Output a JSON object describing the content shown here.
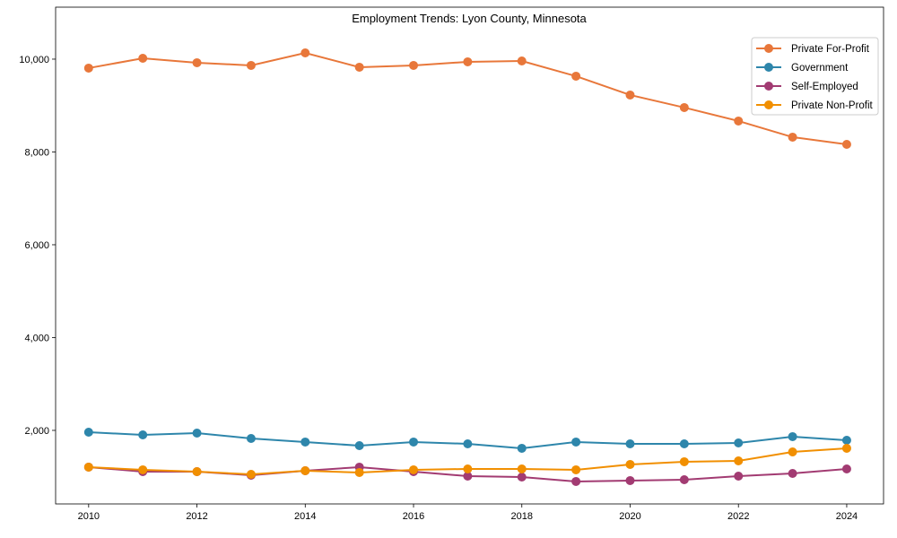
{
  "chart_data": {
    "type": "line",
    "title": "Employment Trends: Lyon County, Minnesota",
    "xlabel": "",
    "ylabel": "",
    "x": [
      2010,
      2011,
      2012,
      2013,
      2014,
      2015,
      2016,
      2017,
      2018,
      2019,
      2020,
      2021,
      2022,
      2023,
      2024
    ],
    "xlim": [
      2009.39,
      2024.68
    ],
    "ylim": [
      415,
      11120
    ],
    "xticks": [
      2010,
      2012,
      2014,
      2016,
      2018,
      2020,
      2022,
      2024
    ],
    "xtick_labels": [
      "2010",
      "2012",
      "2014",
      "2016",
      "2018",
      "2020",
      "2022",
      "2024"
    ],
    "yticks": [
      2000,
      4000,
      6000,
      8000,
      10000
    ],
    "ytick_labels": [
      "2,000",
      "4,000",
      "6,000",
      "8,000",
      "10,000"
    ],
    "grid": false,
    "legend_position": "top-right",
    "series": [
      {
        "name": "Private For-Profit",
        "color": "#E8773A",
        "values": [
          9807,
          10019,
          9923,
          9865,
          10135,
          9826,
          9865,
          9942,
          9961,
          9633,
          9227,
          8957,
          8667,
          8319,
          8164
        ]
      },
      {
        "name": "Government",
        "color": "#2E86AB",
        "values": [
          1961,
          1903,
          1942,
          1826,
          1749,
          1671,
          1749,
          1710,
          1614,
          1749,
          1710,
          1710,
          1729,
          1865,
          1787
        ]
      },
      {
        "name": "Self-Employed",
        "color": "#A23B72",
        "values": [
          1208,
          1111,
          1111,
          1034,
          1130,
          1208,
          1111,
          1014,
          995,
          899,
          918,
          937,
          1014,
          1072,
          1169
        ]
      },
      {
        "name": "Private Non-Profit",
        "color": "#F18F01",
        "values": [
          1208,
          1150,
          1111,
          1053,
          1130,
          1092,
          1150,
          1169,
          1169,
          1150,
          1266,
          1324,
          1343,
          1536,
          1614
        ]
      }
    ]
  }
}
